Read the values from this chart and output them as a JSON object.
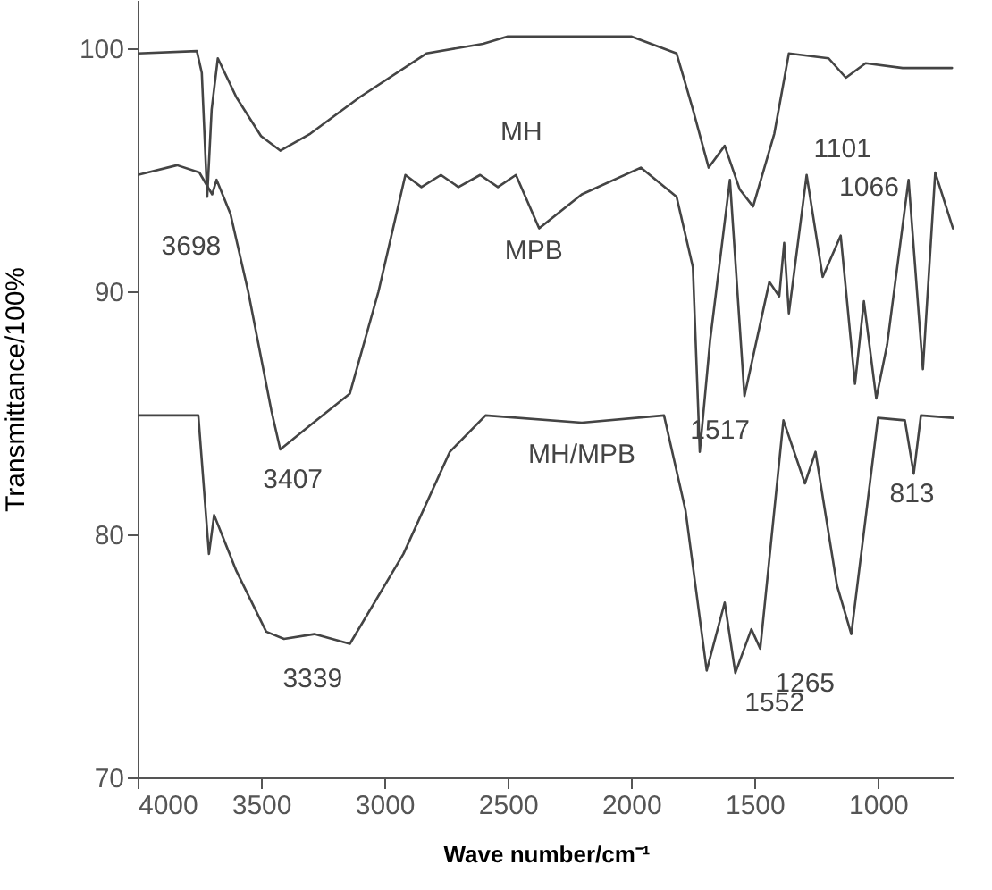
{
  "chart_data": {
    "type": "line",
    "xlabel": "Wave number/cm⁻¹",
    "ylabel": "Transmittance/100%",
    "xlim": [
      4000,
      690
    ],
    "ylim": [
      70,
      102
    ],
    "xticks": [
      4000,
      3500,
      3000,
      2500,
      2000,
      1500,
      1000
    ],
    "yticks": [
      70,
      80,
      90,
      100
    ],
    "grid": false,
    "marker": "none",
    "line_style": "solid",
    "series": [
      {
        "color": "#444444",
        "x": [
          4000,
          3760,
          3740,
          3718,
          3700,
          3675,
          3600,
          3500,
          3422,
          3300,
          3100,
          2830,
          2600,
          2500,
          2000,
          1816,
          1750,
          1686,
          1621,
          1560,
          1506,
          1420,
          1361,
          1200,
          1130,
          1050,
          900,
          700
        ],
        "values": [
          99.8,
          99.9,
          99.0,
          93.9,
          97.5,
          99.6,
          98.0,
          96.4,
          95.8,
          96.5,
          98.0,
          99.8,
          100.2,
          100.5,
          100.5,
          99.8,
          97.5,
          95.1,
          96.0,
          94.2,
          93.5,
          96.5,
          99.8,
          99.6,
          98.8,
          99.4,
          99.2,
          99.2
        ]
      },
      {
        "color": "#444444",
        "x": [
          4000,
          3840,
          3750,
          3698,
          3680,
          3624,
          3552,
          3458,
          3422,
          3300,
          3140,
          3024,
          2915,
          2850,
          2771,
          2700,
          2612,
          2540,
          2467,
          2373,
          2200,
          1961,
          1816,
          1750,
          1722,
          1680,
          1600,
          1541,
          1440,
          1400,
          1380,
          1361,
          1289,
          1224,
          1151,
          1093,
          1057,
          1007,
          963,
          876,
          818,
          768,
          696
        ],
        "values": [
          94.8,
          95.2,
          94.9,
          94.0,
          94.6,
          93.2,
          90.0,
          85.1,
          83.5,
          84.5,
          85.8,
          90.0,
          94.8,
          94.3,
          94.8,
          94.3,
          94.8,
          94.3,
          94.8,
          92.6,
          94.0,
          95.1,
          93.9,
          91.0,
          83.4,
          88.0,
          94.6,
          85.7,
          90.4,
          89.8,
          92.0,
          89.1,
          94.8,
          90.6,
          92.3,
          86.2,
          89.6,
          85.6,
          87.8,
          94.6,
          86.8,
          94.9,
          92.6
        ]
      },
      {
        "color": "#444444",
        "x": [
          4000,
          3754,
          3711,
          3690,
          3600,
          3479,
          3407,
          3284,
          3140,
          2923,
          2735,
          2590,
          2200,
          1867,
          1780,
          1694,
          1621,
          1578,
          1513,
          1477,
          1383,
          1296,
          1253,
          1166,
          1108,
          1000,
          891,
          855,
          826,
          696
        ],
        "values": [
          84.9,
          84.9,
          79.2,
          80.8,
          78.5,
          76.0,
          75.7,
          75.9,
          75.5,
          79.2,
          83.4,
          84.9,
          84.6,
          84.9,
          81.0,
          74.4,
          77.2,
          74.3,
          76.1,
          75.3,
          84.7,
          82.1,
          83.4,
          77.9,
          75.9,
          84.8,
          84.7,
          82.5,
          84.9,
          84.8
        ]
      }
    ],
    "annotations": [
      "MH",
      "1101",
      "MPB",
      "1066",
      "3698",
      "1517",
      "3407",
      "MH/MPB",
      "813",
      "3339",
      "1265",
      "1552"
    ]
  }
}
